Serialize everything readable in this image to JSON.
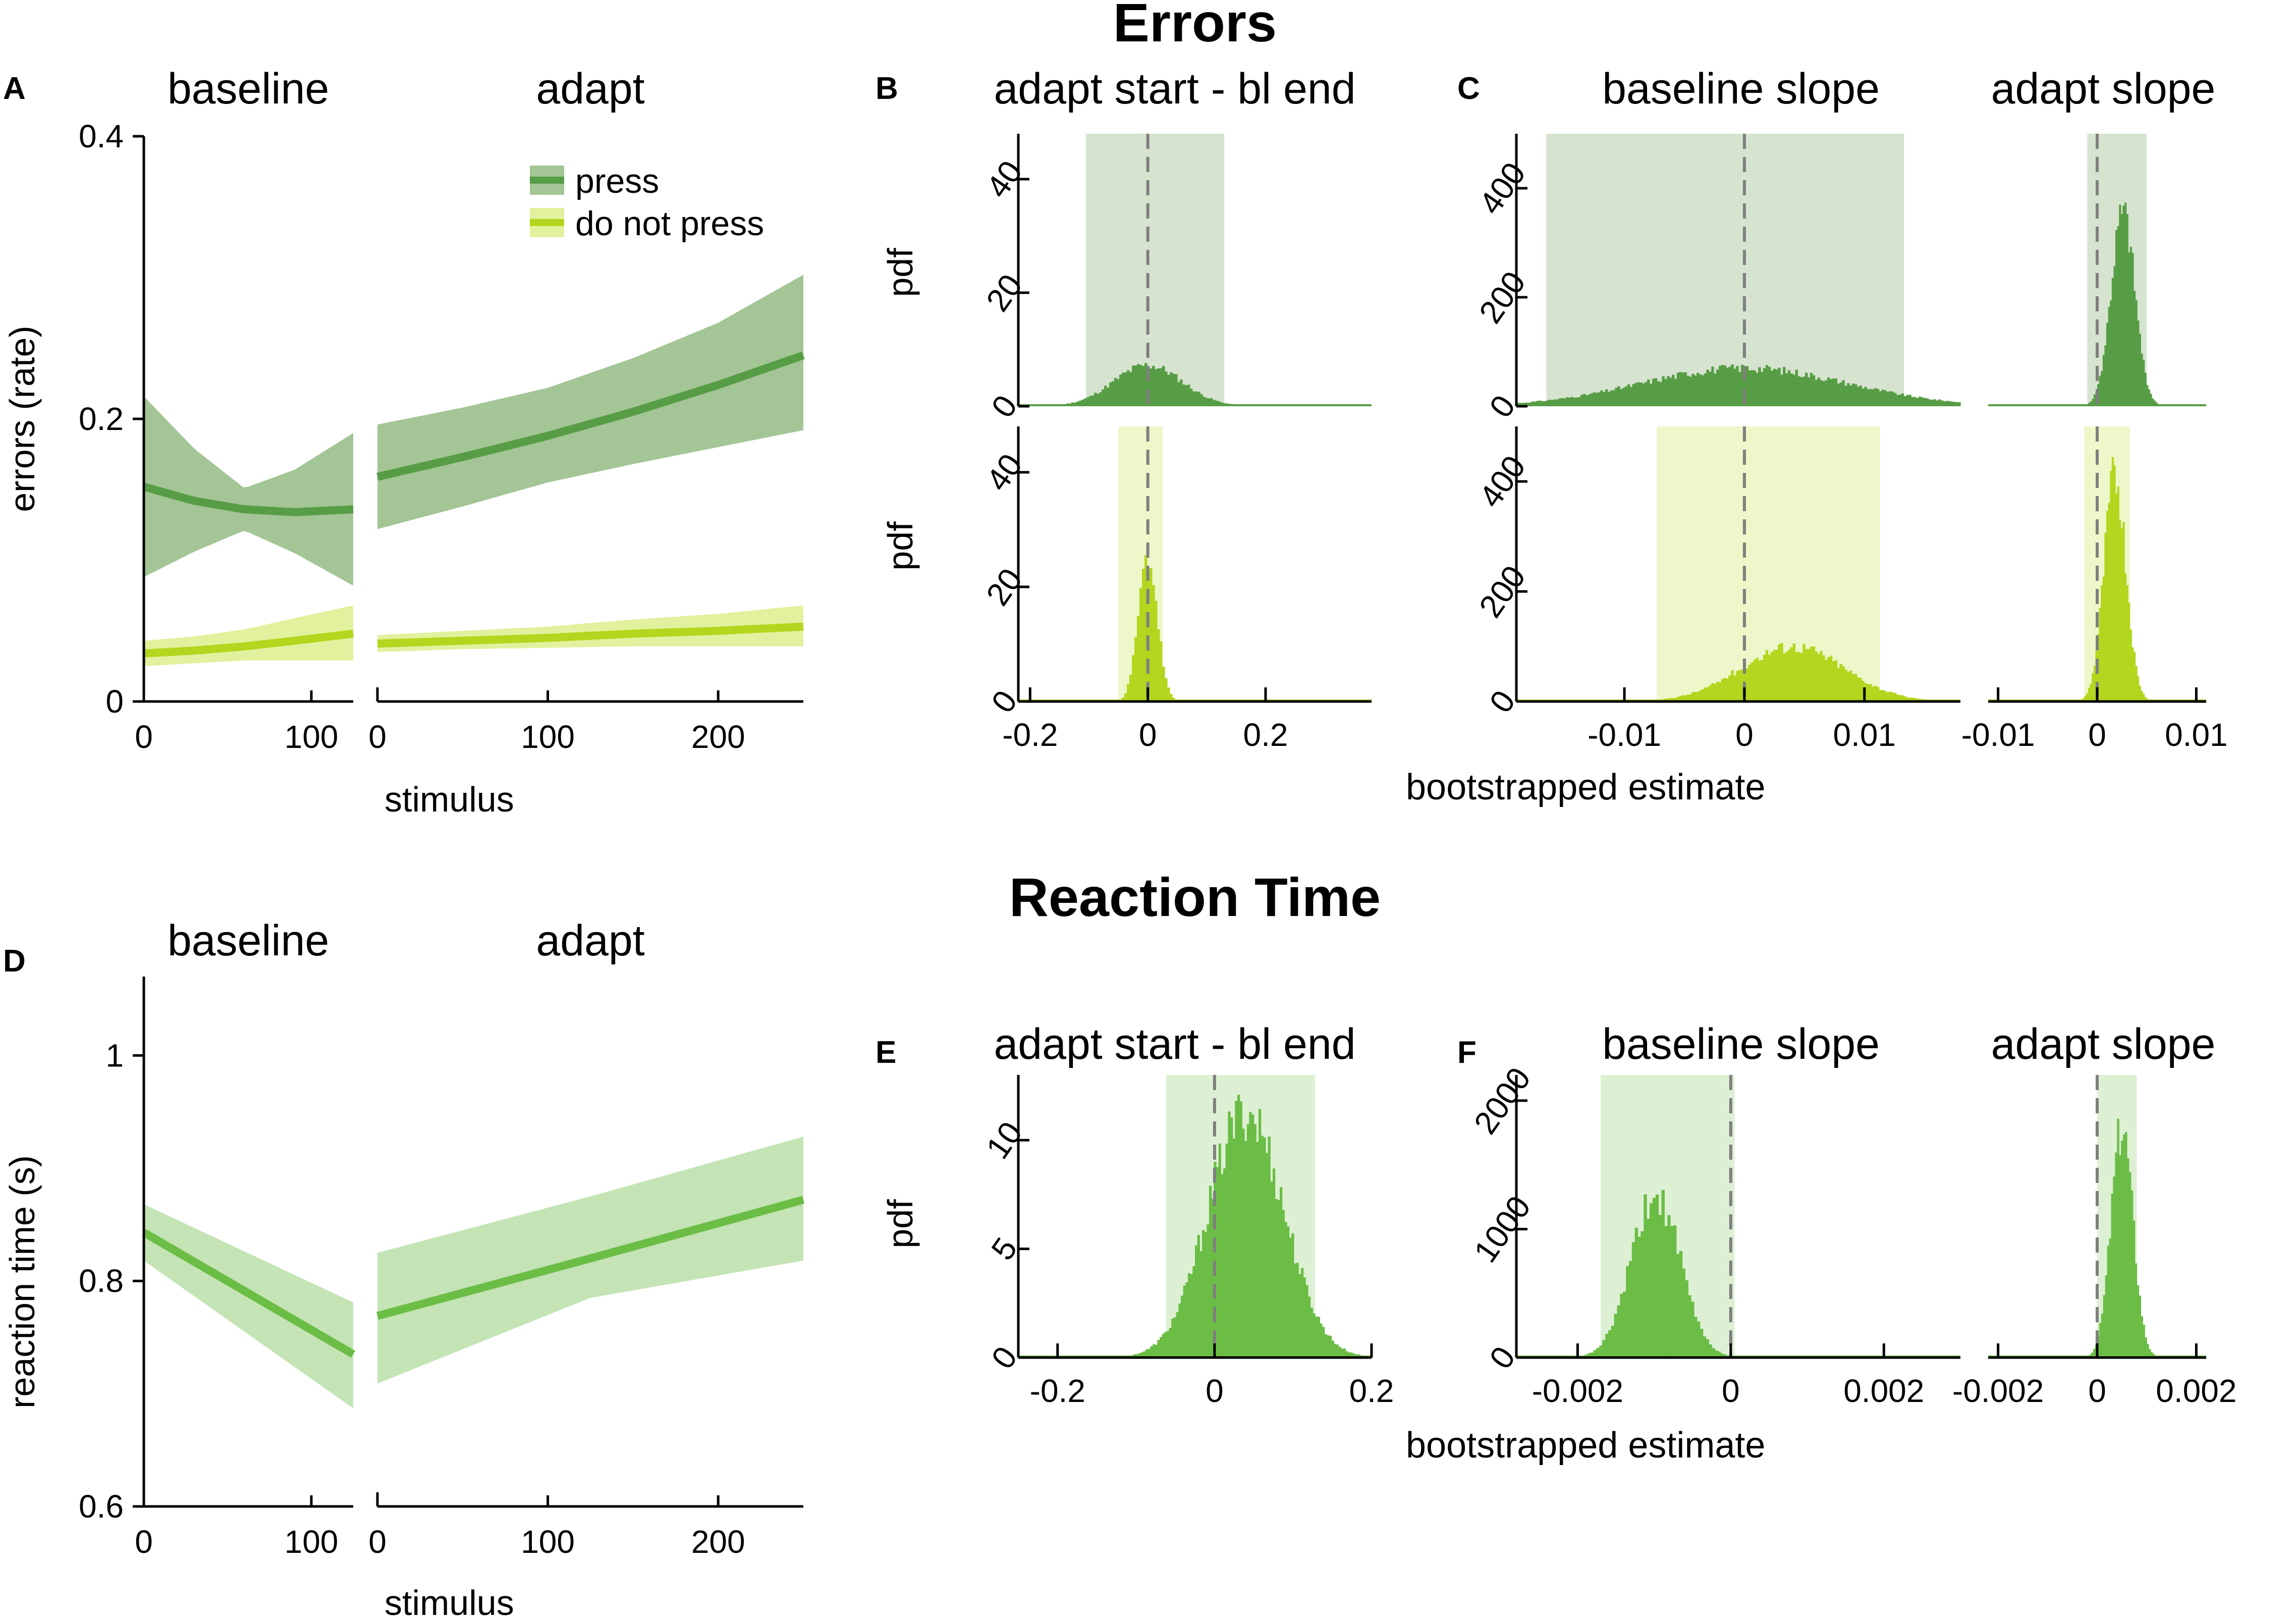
{
  "figure": {
    "errors_title": "Errors",
    "rt_title": "Reaction Time"
  },
  "colors": {
    "press_line": "#579d45",
    "press_band": "#a4c596",
    "nopress_line": "#b3d61e",
    "nopress_band": "#e2f19d",
    "rt_line": "#6bbd45",
    "rt_band": "#c4e4b5",
    "hist_press": "#579d45",
    "hist_nopress": "#b3d61e",
    "hist_rt": "#6bbd45",
    "ci_press": "#d6e3cf",
    "ci_nopress": "#eef7c9",
    "ci_rt": "#ddf0d4"
  },
  "chart_data": [
    {
      "panel": "A",
      "type": "line",
      "subtitles": [
        "baseline",
        "adapt"
      ],
      "xlabel": "stimulus",
      "ylabel": "errors (rate)",
      "ylim": [
        0,
        0.4
      ],
      "yticks": [
        "0",
        "0.2",
        "0.4"
      ],
      "segments": [
        {
          "name": "baseline",
          "xlim": [
            0,
            125
          ],
          "xticks": [
            "0",
            "100"
          ]
        },
        {
          "name": "adapt",
          "xlim": [
            0,
            250
          ],
          "xticks": [
            "0",
            "100",
            "200"
          ]
        }
      ],
      "series": [
        {
          "name": "press",
          "baseline": {
            "x": [
              0,
              30,
              60,
              90,
              125
            ],
            "y": [
              0.152,
              0.142,
              0.136,
              0.134,
              0.136
            ],
            "lo": [
              0.088,
              0.106,
              0.121,
              0.105,
              0.082
            ],
            "hi": [
              0.216,
              0.179,
              0.151,
              0.164,
              0.19
            ]
          },
          "adapt": {
            "x": [
              0,
              50,
              100,
              150,
              200,
              250
            ],
            "y": [
              0.159,
              0.173,
              0.188,
              0.205,
              0.224,
              0.245
            ],
            "lo": [
              0.122,
              0.138,
              0.155,
              0.168,
              0.18,
              0.192
            ],
            "hi": [
              0.196,
              0.208,
              0.222,
              0.243,
              0.268,
              0.302
            ]
          }
        },
        {
          "name": "do not press",
          "baseline": {
            "x": [
              0,
              30,
              60,
              90,
              125
            ],
            "y": [
              0.034,
              0.036,
              0.039,
              0.043,
              0.048
            ],
            "lo": [
              0.025,
              0.027,
              0.029,
              0.029,
              0.029
            ],
            "hi": [
              0.043,
              0.046,
              0.051,
              0.059,
              0.068
            ]
          },
          "adapt": {
            "x": [
              0,
              50,
              100,
              150,
              200,
              250
            ],
            "y": [
              0.041,
              0.043,
              0.045,
              0.048,
              0.05,
              0.053
            ],
            "lo": [
              0.035,
              0.037,
              0.038,
              0.039,
              0.039,
              0.039
            ],
            "hi": [
              0.047,
              0.05,
              0.053,
              0.058,
              0.062,
              0.068
            ]
          }
        }
      ],
      "legend": [
        "press",
        "do not press"
      ],
      "legend_position": "top-right"
    },
    {
      "panel": "B",
      "type": "histogram",
      "title": "adapt start - bl end",
      "ylabel": "pdf",
      "xlim": [
        -0.22,
        0.38
      ],
      "xticks": [
        "-0.2",
        "0",
        "0.2"
      ],
      "rows": [
        {
          "condition": "press",
          "ylim": [
            0,
            48
          ],
          "yticks": [
            "0",
            "20",
            "40"
          ],
          "mean": 0.0,
          "sd": 0.058,
          "peak": 7.2,
          "ci": [
            -0.105,
            0.13
          ]
        },
        {
          "condition": "do not press",
          "ylim": [
            0,
            48
          ],
          "yticks": [
            "0",
            "20",
            "40"
          ],
          "mean": 0.0,
          "sd": 0.016,
          "peak": 25.0,
          "ci": [
            -0.05,
            0.025
          ]
        }
      ]
    },
    {
      "panel": "C",
      "type": "histogram",
      "title": "baseline slope",
      "ylabel": "",
      "xlim": [
        -0.019,
        0.018
      ],
      "xticks": [
        "-0.01",
        "0",
        "0.01"
      ],
      "xlabel": "bootstrapped estimate",
      "rows": [
        {
          "condition": "press",
          "ylim": [
            0,
            500
          ],
          "yticks": [
            "0",
            "200",
            "400"
          ],
          "mean": 0.0,
          "sd": 0.0085,
          "peak": 70,
          "ci": [
            -0.0165,
            0.0133
          ]
        },
        {
          "condition": "do not press",
          "ylim": [
            0,
            500
          ],
          "yticks": [
            "0",
            "200",
            "400"
          ],
          "mean": 0.004,
          "sd": 0.0043,
          "peak": 100,
          "ci": [
            -0.0073,
            0.0113
          ]
        }
      ]
    },
    {
      "panel": "C",
      "type": "histogram",
      "title": "adapt slope",
      "xlim": [
        -0.011,
        0.011
      ],
      "xticks": [
        "-0.01",
        "0",
        "0.01"
      ],
      "rows": [
        {
          "condition": "press",
          "ylim": [
            0,
            500
          ],
          "mean": 0.0026,
          "sd": 0.0012,
          "peak": 350,
          "ci": [
            -0.001,
            0.005
          ]
        },
        {
          "condition": "do not press",
          "ylim": [
            0,
            500
          ],
          "mean": 0.0018,
          "sd": 0.0011,
          "peak": 410,
          "ci": [
            -0.0013,
            0.0033
          ]
        }
      ]
    },
    {
      "panel": "D",
      "type": "line",
      "subtitles": [
        "baseline",
        "adapt"
      ],
      "xlabel": "stimulus",
      "ylabel": "reaction time (s)",
      "ylim": [
        0.6,
        1.07
      ],
      "yticks": [
        "0.6",
        "0.8",
        "1"
      ],
      "segments": [
        {
          "name": "baseline",
          "xlim": [
            0,
            125
          ],
          "xticks": [
            "0",
            "100"
          ]
        },
        {
          "name": "adapt",
          "xlim": [
            0,
            250
          ],
          "xticks": [
            "0",
            "100",
            "200"
          ]
        }
      ],
      "series": [
        {
          "name": "reaction time",
          "baseline": {
            "x": [
              0,
              125
            ],
            "y": [
              0.843,
              0.735
            ],
            "lo": [
              0.818,
              0.687
            ],
            "hi": [
              0.868,
              0.781
            ]
          },
          "adapt": {
            "x": [
              0,
              125,
              250
            ],
            "y": [
              0.769,
              0.82,
              0.872
            ],
            "lo": [
              0.709,
              0.785,
              0.818
            ],
            "hi": [
              0.825,
              0.875,
              0.928
            ]
          }
        }
      ]
    },
    {
      "panel": "E",
      "type": "histogram",
      "title": "adapt start - bl end",
      "ylabel": "pdf",
      "xlim": [
        -0.25,
        0.2
      ],
      "xticks": [
        "-0.2",
        "0",
        "0.2"
      ],
      "rows": [
        {
          "condition": "reaction time",
          "ylim": [
            0,
            13
          ],
          "yticks": [
            "0",
            "5",
            "10"
          ],
          "mean": 0.04,
          "sd": 0.048,
          "peak": 11.3,
          "ci": [
            -0.062,
            0.128
          ]
        }
      ]
    },
    {
      "panel": "F",
      "type": "histogram",
      "title": "baseline slope",
      "xlim": [
        -0.0028,
        0.003
      ],
      "xticks": [
        "-0.002",
        "0",
        "0.002"
      ],
      "xlabel": "bootstrapped estimate",
      "rows": [
        {
          "condition": "reaction time",
          "ylim": [
            0,
            2200
          ],
          "yticks": [
            "0",
            "1000",
            "2000"
          ],
          "mean": -0.00098,
          "sd": 0.00032,
          "peak": 1250,
          "ci": [
            -0.0017,
            5e-05
          ]
        }
      ]
    },
    {
      "panel": "F",
      "type": "histogram",
      "title": "adapt slope",
      "xlim": [
        -0.0022,
        0.0022
      ],
      "xticks": [
        "-0.002",
        "0",
        "0.002"
      ],
      "rows": [
        {
          "condition": "reaction time",
          "ylim": [
            0,
            2200
          ],
          "mean": 0.0005,
          "sd": 0.00022,
          "peak": 1800,
          "ci": [
            0.0,
            0.0008
          ]
        }
      ]
    }
  ]
}
